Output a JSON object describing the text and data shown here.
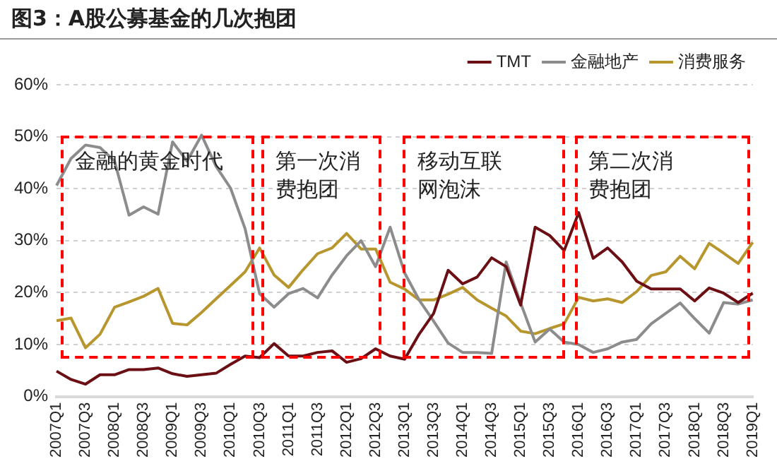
{
  "chart_data": {
    "type": "line",
    "title": "图3：A股公募基金的几次抱团",
    "categories": [
      "2007Q1",
      null,
      "2007Q3",
      null,
      "2008Q1",
      null,
      "2008Q3",
      null,
      "2009Q1",
      null,
      "2009Q3",
      null,
      "2010Q1",
      null,
      "2010Q3",
      null,
      "2011Q1",
      null,
      "2011Q3",
      null,
      "2012Q1",
      null,
      "2012Q3",
      null,
      "2013Q1",
      null,
      "2013Q3",
      null,
      "2014Q1",
      null,
      "2014Q3",
      null,
      "2015Q1",
      null,
      "2015Q3",
      null,
      "2016Q1",
      null,
      "2016Q3",
      null,
      "2017Q1",
      null,
      "2017Q3",
      null,
      "2018Q1",
      null,
      "2018Q3",
      null,
      "2019Q1"
    ],
    "series": [
      {
        "name": "TMT",
        "color": "#6b0f14",
        "values": [
          4.9,
          3.3,
          2.4,
          4.2,
          4.2,
          5.2,
          5.2,
          5.5,
          4.4,
          3.9,
          4.2,
          4.5,
          6.2,
          7.8,
          7.5,
          10.2,
          7.8,
          7.8,
          8.5,
          8.8,
          6.6,
          7.3,
          9.2,
          7.8,
          7.2,
          12,
          16,
          24.3,
          21.7,
          23,
          26.7,
          25,
          17.6,
          32.6,
          31,
          28.1,
          35.4,
          26.6,
          28.6,
          25.9,
          22.2,
          20.7,
          20.7,
          20.7,
          18.4,
          20.9,
          19.9,
          18.1,
          19.9
        ]
      },
      {
        "name": "金融地产",
        "color": "#8c8c8c",
        "values": [
          40.6,
          45.8,
          48.4,
          47.9,
          45.3,
          34.9,
          36.5,
          35.1,
          49,
          45.3,
          50.3,
          44.3,
          40.1,
          32.3,
          19.8,
          17.2,
          19.8,
          20.8,
          19,
          23.4,
          27.1,
          30,
          25,
          32.6,
          23.8,
          18.6,
          14.5,
          10.3,
          8.5,
          8.5,
          8.3,
          25.9,
          18,
          10.5,
          13,
          10.5,
          10,
          8.5,
          9.2,
          10.5,
          11,
          14,
          16,
          18,
          15,
          12.2,
          18.1,
          17.8,
          18.6
        ]
      },
      {
        "name": "消费服务",
        "color": "#b8962e",
        "values": [
          14.6,
          15.1,
          9.4,
          12,
          17.2,
          18.2,
          19.3,
          20.8,
          14.1,
          13.8,
          16.2,
          18.8,
          21.4,
          24,
          28.6,
          23.4,
          21,
          24.4,
          27.5,
          28.6,
          31.4,
          28.4,
          28.4,
          22,
          20.7,
          18.6,
          18.6,
          19.7,
          21,
          18.6,
          17,
          15.5,
          12.6,
          12.1,
          13.1,
          14,
          19.1,
          18.4,
          18.8,
          18.1,
          20.2,
          23.3,
          24,
          27,
          24.6,
          29.5,
          27.6,
          25.6,
          29.7
        ]
      }
    ],
    "ylim": [
      0,
      60
    ],
    "yticks": [
      {
        "value": 0,
        "label": "0%"
      },
      {
        "value": 10,
        "label": "10%"
      },
      {
        "value": 20,
        "label": "20%"
      },
      {
        "value": 30,
        "label": "30%"
      },
      {
        "value": 40,
        "label": "40%"
      },
      {
        "value": 50,
        "label": "50%"
      },
      {
        "value": 60,
        "label": "60%"
      }
    ],
    "annotations": [
      "金融的黄金时代",
      "第一次消费抱团",
      "移动互联网泡沫",
      "第二次消费抱团"
    ],
    "grid": "y",
    "legend": "top right",
    "marker": "none",
    "line_style": "solid"
  }
}
